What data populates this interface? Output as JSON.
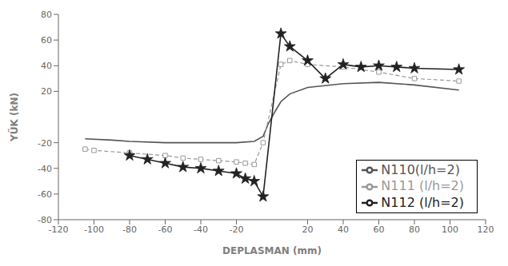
{
  "chart_data": {
    "type": "line",
    "xlabel": "DEPLASMAN (mm)",
    "ylabel": "YÜK (kN)",
    "xlim": [
      -120,
      120
    ],
    "ylim": [
      -80,
      80
    ],
    "xticks": [
      -120,
      -100,
      -80,
      -60,
      -40,
      -20,
      20,
      40,
      60,
      80,
      100,
      120
    ],
    "yticks": [
      -80,
      -60,
      -40,
      -20,
      20,
      40,
      60,
      80
    ],
    "legend": "lower right",
    "series": [
      {
        "name": "N110(l/h=2)",
        "color": "#555555",
        "marker": "none",
        "line_style": "solid",
        "x": [
          -105,
          -90,
          -80,
          -60,
          -40,
          -20,
          -10,
          -5,
          -2,
          0,
          2,
          5,
          10,
          20,
          40,
          60,
          80,
          105
        ],
        "values": [
          -17,
          -18,
          -19,
          -20,
          -20,
          -20,
          -19,
          -15,
          -5,
          0,
          5,
          12,
          18,
          23,
          26,
          27,
          25,
          21
        ]
      },
      {
        "name": "N111 (l/h=2)",
        "color": "#999999",
        "marker": "square",
        "line_style": "dashed",
        "x": [
          -105,
          -100,
          -80,
          -60,
          -50,
          -40,
          -30,
          -20,
          -15,
          -10,
          -5,
          5,
          10,
          20,
          40,
          60,
          80,
          105
        ],
        "values": [
          -25,
          -26,
          -28,
          -30,
          -32,
          -33,
          -34,
          -35,
          -36,
          -37,
          -20,
          41,
          44,
          41,
          39,
          35,
          30,
          28
        ]
      },
      {
        "name": "N112 (l/h=2)",
        "color": "#222222",
        "marker": "star",
        "line_style": "solid",
        "x": [
          -80,
          -70,
          -60,
          -50,
          -40,
          -30,
          -20,
          -15,
          -10,
          -5,
          5,
          10,
          20,
          30,
          40,
          50,
          60,
          70,
          80,
          105
        ],
        "values": [
          -30,
          -33,
          -36,
          -39,
          -40,
          -42,
          -44,
          -48,
          -50,
          -62,
          65,
          55,
          44,
          30,
          41,
          39,
          40,
          39,
          38,
          37
        ]
      }
    ]
  }
}
